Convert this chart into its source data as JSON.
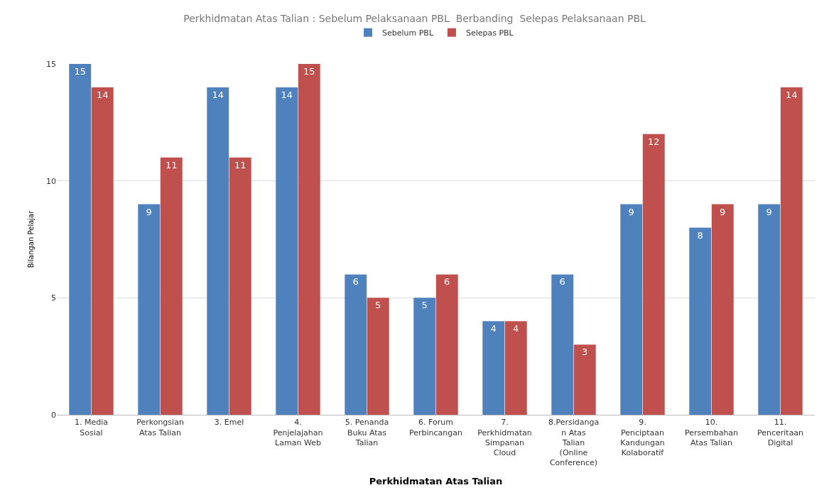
{
  "chart_data": {
    "type": "bar",
    "title": "Perkhidmatan Atas Talian : Sebelum Pelaksanaan PBL  Berbanding  Selepas Pelaksanaan PBL",
    "xlabel": "Perkhidmatan Atas Talian",
    "ylabel": "Bilangan Pelajar",
    "categories": [
      "1. Media Sosial",
      "Perkongsian Atas Talian",
      "3. Emel",
      "4. Penjelajahan Laman Web",
      "5. Penanda Buku Atas Talian",
      "6. Forum Perbincangan",
      "7. Perkhidmatan Simpanan Cloud",
      "8.Persidangan Atas Talian (Online Conference)",
      "9. Penciptaan Kandungan Kolaboratif",
      "10. Persembahan Atas Talian",
      "11. Penceritaan Digital"
    ],
    "series": [
      {
        "name": "Sebelum PBL",
        "color": "#4f81bd",
        "values": [
          15,
          9,
          14,
          14,
          6,
          5,
          4,
          6,
          9,
          8,
          9
        ]
      },
      {
        "name": "Selepas PBL",
        "color": "#c0504d",
        "values": [
          14,
          11,
          11,
          15,
          5,
          6,
          4,
          3,
          12,
          9,
          14
        ]
      }
    ],
    "ylim": [
      0,
      15
    ],
    "yticks": [
      0,
      5,
      10,
      15
    ],
    "grid": "y",
    "legend": "top",
    "data_labels": true
  }
}
